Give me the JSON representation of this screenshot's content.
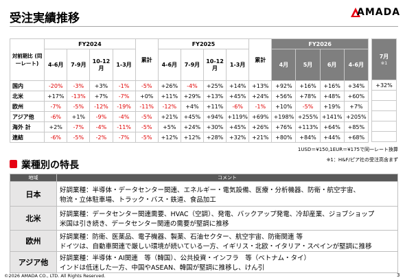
{
  "header": {
    "title": "受注実績推移",
    "logo": "AMADA"
  },
  "orders_table": {
    "corner": "対前期比 (同一レート)",
    "groups": [
      {
        "label": "FY2024",
        "columns": [
          "4-6月",
          "7-9月",
          "10-12月",
          "1-3月"
        ],
        "total": "累計"
      },
      {
        "label": "FY2025",
        "columns": [
          "4-6月",
          "7-9月",
          "10-12月",
          "1-3月"
        ],
        "total": "累計"
      },
      {
        "label": "FY2026",
        "columns": [
          "4月",
          "5月",
          "6月",
          "4-6月"
        ]
      }
    ],
    "extra_column": {
      "label": "7月",
      "note": "※1"
    },
    "rows": [
      {
        "label": "国内",
        "cells": [
          "-20%",
          "-3%",
          "+3%",
          "-1%",
          "-5%",
          "+26%",
          "-4%",
          "+25%",
          "+14%",
          "+13%",
          "+92%",
          "+16%",
          "+16%",
          "+34%"
        ],
        "extra": "+32%"
      },
      {
        "label": "北米",
        "cells": [
          "+17%",
          "-13%",
          "+7%",
          "-7%",
          "+0%",
          "+11%",
          "+29%",
          "+13%",
          "+45%",
          "+24%",
          "+56%",
          "+78%",
          "+48%",
          "+60%"
        ]
      },
      {
        "label": "欧州",
        "cells": [
          "-7%",
          "-5%",
          "-12%",
          "-19%",
          "-11%",
          "-12%",
          "+4%",
          "+11%",
          "-6%",
          "-1%",
          "+10%",
          "-5%",
          "+19%",
          "+7%"
        ]
      },
      {
        "label": "アジア他",
        "cells": [
          "-6%",
          "+1%",
          "-9%",
          "-4%",
          "-5%",
          "+21%",
          "+45%",
          "+94%",
          "+119%",
          "+69%",
          "+198%",
          "+255%",
          "+141%",
          "+205%"
        ]
      },
      {
        "label": "海外 計",
        "cells": [
          "+2%",
          "-7%",
          "-4%",
          "-11%",
          "-5%",
          "+5%",
          "+24%",
          "+30%",
          "+45%",
          "+26%",
          "+76%",
          "+113%",
          "+64%",
          "+85%"
        ]
      },
      {
        "label": "連結",
        "cells": [
          "-6%",
          "-5%",
          "-2%",
          "-7%",
          "-5%",
          "+12%",
          "+12%",
          "+28%",
          "+32%",
          "+21%",
          "+80%",
          "+84%",
          "+44%",
          "+68%"
        ]
      }
    ]
  },
  "notes": [
    "1USD＝¥150,1EUR＝¥175で同一レート換算",
    "※1：H&F/ピア社の受注高含まず"
  ],
  "section": {
    "title": "業種別の特長"
  },
  "industry_table": {
    "headers": [
      "地域",
      "コメント"
    ],
    "rows": [
      {
        "region": "日本",
        "lines": [
          "好調業種：半導体・データセンター関連、エネルギー・電気設備、医療・分析機器、防衛・航空宇宙、",
          "物流・立体駐車場、トラック・バス・鉄道、食品加工"
        ]
      },
      {
        "region": "北米",
        "lines": [
          "好調業種：データセンター関連需要、HVAC（空調）、発電、バックアップ発電、冷却産業、ジョブショップ",
          "米国は引き続き、データセンター関連の需要が堅調に推移"
        ]
      },
      {
        "region": "欧州",
        "lines": [
          "好調業種：防衛、医薬品、電子機器、製薬、石油セクター、航空宇宙、防衛関連 等",
          "ドイツは、自動車関連で厳しい環境が続いている一方、イギリス・北欧・イタリア・スペインが堅調に推移"
        ]
      },
      {
        "region": "アジア他",
        "lines": [
          "好調業種：半導体・AI関連　等（韓国）、公共投資・インフラ　等（ベトナム・タイ）",
          "インドは低迷した一方、中国やASEAN、韓国が堅調に推移し、けん引"
        ]
      }
    ]
  },
  "footer": {
    "copyright": "©2026 AMADA CO., LTD. All Rights Reserved.",
    "page": "3"
  }
}
